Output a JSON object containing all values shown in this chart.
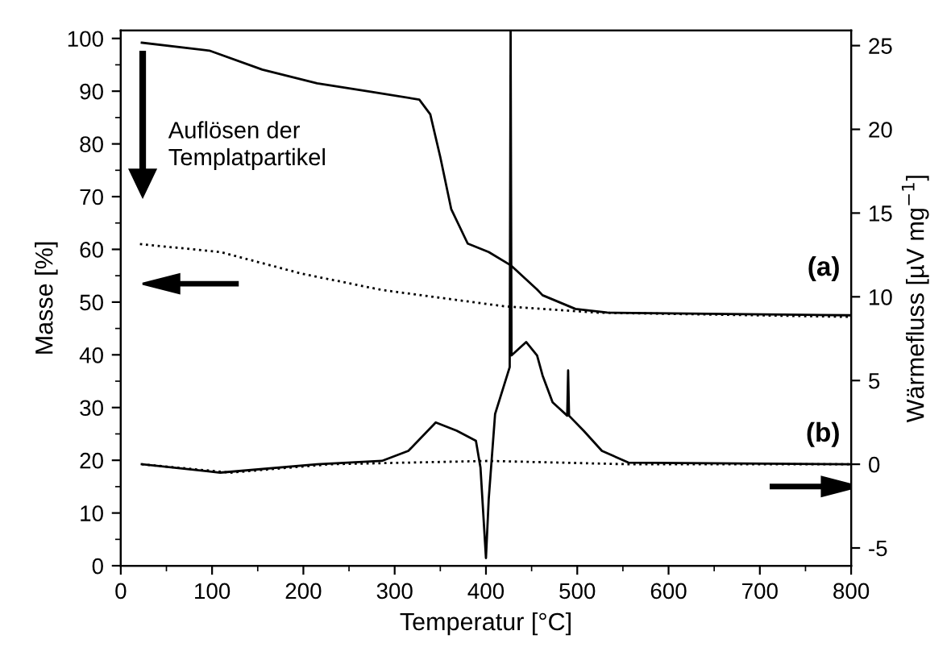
{
  "chart_data": {
    "type": "line",
    "xlabel": "Temperatur [°C]",
    "ylabel": "Masse [%]",
    "y2label": "Wärmefluss [µV mg$^{−1}$]",
    "xlim": [
      0,
      800
    ],
    "ylim": [
      0,
      101.5
    ],
    "y2lim": [
      -6.06,
      25.9
    ],
    "xticks": [
      0,
      {
        "value": 50,
        "label": null
      },
      100,
      {
        "value": 150,
        "label": null
      },
      200,
      {
        "value": 250,
        "label": null
      },
      300,
      {
        "value": 350,
        "label": null
      },
      400,
      {
        "value": 450,
        "label": null
      },
      500,
      {
        "value": 550,
        "label": null
      },
      600,
      {
        "value": 650,
        "label": null
      },
      700,
      {
        "value": 750,
        "label": null
      },
      800
    ],
    "yticks": [
      0,
      {
        "value": 5,
        "label": null
      },
      10,
      {
        "value": 15,
        "label": null
      },
      20,
      {
        "value": 25,
        "label": null
      },
      30,
      {
        "value": 35,
        "label": null
      },
      40,
      {
        "value": 45,
        "label": null
      },
      50,
      {
        "value": 55,
        "label": null
      },
      60,
      {
        "value": 65,
        "label": null
      },
      70,
      {
        "value": 75,
        "label": null
      },
      80,
      {
        "value": 85,
        "label": null
      },
      90,
      {
        "value": 95,
        "label": null
      },
      100
    ],
    "y2ticks": [
      -5,
      0,
      5,
      10,
      15,
      20,
      25
    ],
    "grid": false,
    "marker": "none",
    "annotations": [
      "Auflösen der\nTemplatpartikel",
      "(a)",
      "(b)"
    ],
    "series": [
      {
        "color": "#000000",
        "line_style": "solid",
        "x": [
          23,
          97,
          155,
          215,
          274,
          327,
          339,
          350,
          362,
          380,
          403,
          427,
          456,
          462,
          498,
          533,
          798
        ],
        "values": [
          99.2,
          97.7,
          94.1,
          91.5,
          89.9,
          88.4,
          85.6,
          77.5,
          67.6,
          61.1,
          59.5,
          57.0,
          52.4,
          51.3,
          48.7,
          48.0,
          47.5
        ]
      },
      {
        "color": "#000000",
        "line_style": "dotted",
        "x": [
          21,
          109,
          198,
          286,
          420,
          521,
          798
        ],
        "values": [
          61.0,
          59.5,
          55.4,
          52.3,
          49.2,
          48.0,
          47.2
        ]
      },
      {
        "color": "#000000",
        "line_style": "solid",
        "axis": "y2",
        "x": [
          23,
          109,
          215,
          286,
          315,
          345,
          368,
          389,
          394,
          400,
          403,
          410,
          426,
          427,
          428,
          444,
          456,
          462,
          473,
          489,
          490,
          491,
          507,
          527,
          556,
          798
        ],
        "values": [
          0,
          -0.5,
          0,
          0.2,
          0.8,
          2.5,
          2.0,
          1.4,
          -0.2,
          -5.6,
          -2.1,
          3.0,
          5.8,
          25.9,
          6.5,
          7.3,
          6.5,
          5.3,
          3.7,
          2.9,
          5.6,
          2.9,
          2.0,
          0.8,
          0.1,
          0
        ]
      },
      {
        "color": "#000000",
        "line_style": "dotted",
        "axis": "y2",
        "x": [
          23,
          120,
          229,
          403,
          556,
          798
        ],
        "values": [
          0,
          -0.5,
          0,
          0.2,
          0,
          0
        ]
      }
    ]
  }
}
